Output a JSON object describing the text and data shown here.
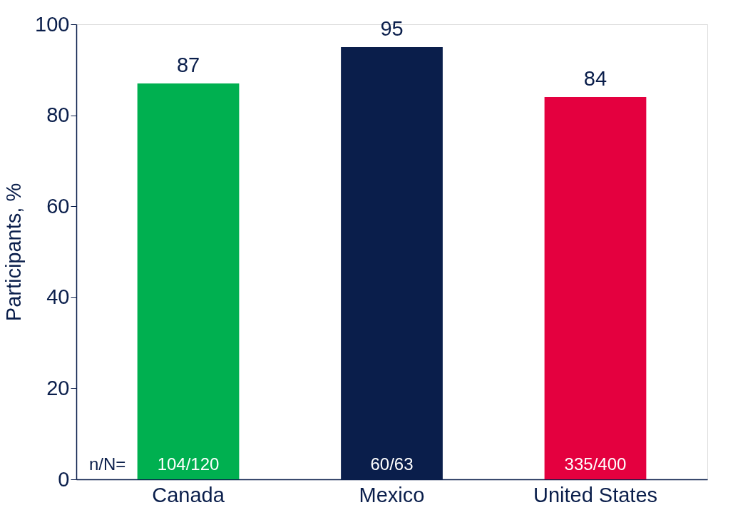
{
  "chart_data": {
    "type": "bar",
    "ylabel": "Participants, %",
    "categories": [
      "Canada",
      "Mexico",
      "United States"
    ],
    "values": [
      87,
      95,
      84
    ],
    "colors": [
      "#00b050",
      "#0a1e4b",
      "#e4003f"
    ],
    "ylim": [
      0,
      100
    ],
    "yticks": [
      0,
      20,
      40,
      60,
      80,
      100
    ],
    "data_labels": true,
    "grid": false,
    "annotations": [
      "n/N=",
      {
        "text": "104/120",
        "x": "Canada",
        "y": 0
      },
      {
        "text": "60/63",
        "x": "Mexico",
        "y": 0
      },
      {
        "text": "335/400",
        "x": "United States",
        "y": 0
      }
    ]
  }
}
